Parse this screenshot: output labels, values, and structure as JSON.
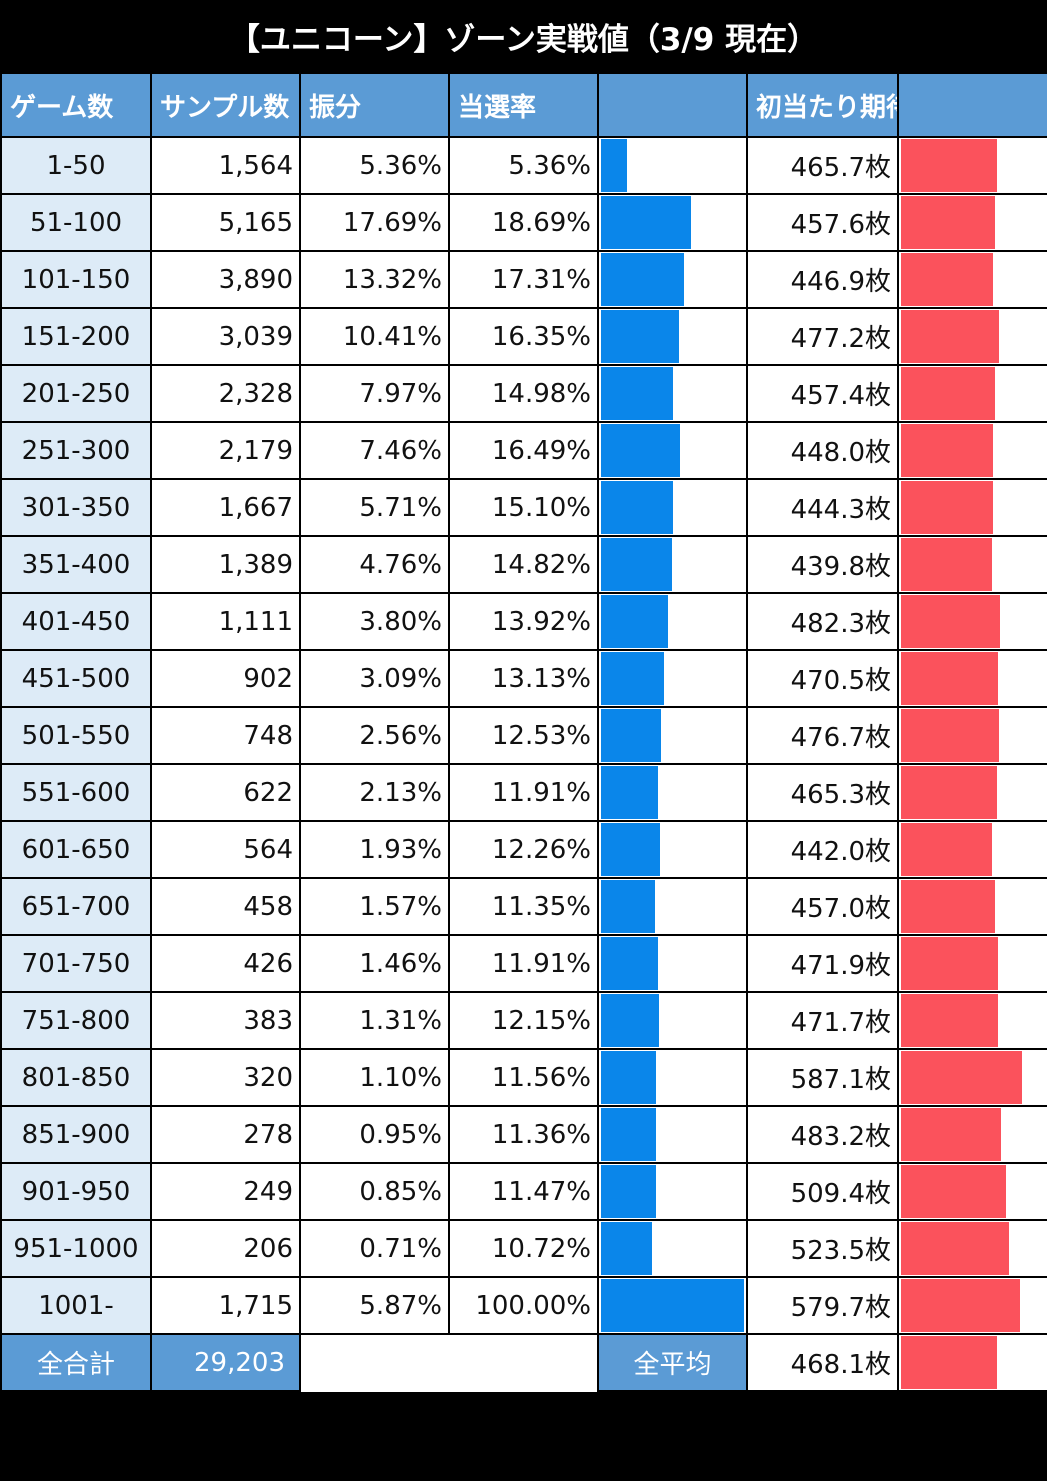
{
  "title": "【ユニコーン】ゾーン実戦値（3/9 現在）",
  "headers": {
    "game": "ゲーム数",
    "sample": "サンプル数",
    "share": "振分",
    "hit": "当選率",
    "hit_bar": "",
    "expect": "初当たり期待枚数",
    "expect_bar": ""
  },
  "colors": {
    "header_bg": "#5b9bd5",
    "game_bg": "#ddebf7",
    "hit_bar": "#0a86ea",
    "expect_bar": "#fb525c"
  },
  "chart_data": {
    "type": "table",
    "columns": [
      "ゲーム数",
      "サンプル数",
      "振分",
      "当選率",
      "初当たり期待枚数"
    ],
    "rows": [
      {
        "zone": "1-50",
        "sample": "1,564",
        "share": "5.36%",
        "hit": "5.36%",
        "expect": "465.7枚",
        "hit_value": 5.36,
        "expect_value": 465.7
      },
      {
        "zone": "51-100",
        "sample": "5,165",
        "share": "17.69%",
        "hit": "18.69%",
        "expect": "457.6枚",
        "hit_value": 18.69,
        "expect_value": 457.6
      },
      {
        "zone": "101-150",
        "sample": "3,890",
        "share": "13.32%",
        "hit": "17.31%",
        "expect": "446.9枚",
        "hit_value": 17.31,
        "expect_value": 446.9
      },
      {
        "zone": "151-200",
        "sample": "3,039",
        "share": "10.41%",
        "hit": "16.35%",
        "expect": "477.2枚",
        "hit_value": 16.35,
        "expect_value": 477.2
      },
      {
        "zone": "201-250",
        "sample": "2,328",
        "share": "7.97%",
        "hit": "14.98%",
        "expect": "457.4枚",
        "hit_value": 14.98,
        "expect_value": 457.4
      },
      {
        "zone": "251-300",
        "sample": "2,179",
        "share": "7.46%",
        "hit": "16.49%",
        "expect": "448.0枚",
        "hit_value": 16.49,
        "expect_value": 448.0
      },
      {
        "zone": "301-350",
        "sample": "1,667",
        "share": "5.71%",
        "hit": "15.10%",
        "expect": "444.3枚",
        "hit_value": 15.1,
        "expect_value": 444.3
      },
      {
        "zone": "351-400",
        "sample": "1,389",
        "share": "4.76%",
        "hit": "14.82%",
        "expect": "439.8枚",
        "hit_value": 14.82,
        "expect_value": 439.8
      },
      {
        "zone": "401-450",
        "sample": "1,111",
        "share": "3.80%",
        "hit": "13.92%",
        "expect": "482.3枚",
        "hit_value": 13.92,
        "expect_value": 482.3
      },
      {
        "zone": "451-500",
        "sample": "902",
        "share": "3.09%",
        "hit": "13.13%",
        "expect": "470.5枚",
        "hit_value": 13.13,
        "expect_value": 470.5
      },
      {
        "zone": "501-550",
        "sample": "748",
        "share": "2.56%",
        "hit": "12.53%",
        "expect": "476.7枚",
        "hit_value": 12.53,
        "expect_value": 476.7
      },
      {
        "zone": "551-600",
        "sample": "622",
        "share": "2.13%",
        "hit": "11.91%",
        "expect": "465.3枚",
        "hit_value": 11.91,
        "expect_value": 465.3
      },
      {
        "zone": "601-650",
        "sample": "564",
        "share": "1.93%",
        "hit": "12.26%",
        "expect": "442.0枚",
        "hit_value": 12.26,
        "expect_value": 442.0
      },
      {
        "zone": "651-700",
        "sample": "458",
        "share": "1.57%",
        "hit": "11.35%",
        "expect": "457.0枚",
        "hit_value": 11.35,
        "expect_value": 457.0
      },
      {
        "zone": "701-750",
        "sample": "426",
        "share": "1.46%",
        "hit": "11.91%",
        "expect": "471.9枚",
        "hit_value": 11.91,
        "expect_value": 471.9
      },
      {
        "zone": "751-800",
        "sample": "383",
        "share": "1.31%",
        "hit": "12.15%",
        "expect": "471.7枚",
        "hit_value": 12.15,
        "expect_value": 471.7
      },
      {
        "zone": "801-850",
        "sample": "320",
        "share": "1.10%",
        "hit": "11.56%",
        "expect": "587.1枚",
        "hit_value": 11.56,
        "expect_value": 587.1
      },
      {
        "zone": "851-900",
        "sample": "278",
        "share": "0.95%",
        "hit": "11.36%",
        "expect": "483.2枚",
        "hit_value": 11.36,
        "expect_value": 483.2
      },
      {
        "zone": "901-950",
        "sample": "249",
        "share": "0.85%",
        "hit": "11.47%",
        "expect": "509.4枚",
        "hit_value": 11.47,
        "expect_value": 509.4
      },
      {
        "zone": "951-1000",
        "sample": "206",
        "share": "0.71%",
        "hit": "10.72%",
        "expect": "523.5枚",
        "hit_value": 10.72,
        "expect_value": 523.5
      },
      {
        "zone": "1001-",
        "sample": "1,715",
        "share": "5.87%",
        "hit": "100.00%",
        "expect": "579.7枚",
        "hit_value": 100.0,
        "expect_value": 579.7
      }
    ],
    "hit_bar_scale": "nonlinear (100% ≈ full column width)",
    "expect_bar_scale_max": 600
  },
  "totals": {
    "total_label": "全合計",
    "total_sample": "29,203",
    "avg_label": "全平均",
    "avg_expect": "468.1枚",
    "avg_expect_value": 468.1
  }
}
